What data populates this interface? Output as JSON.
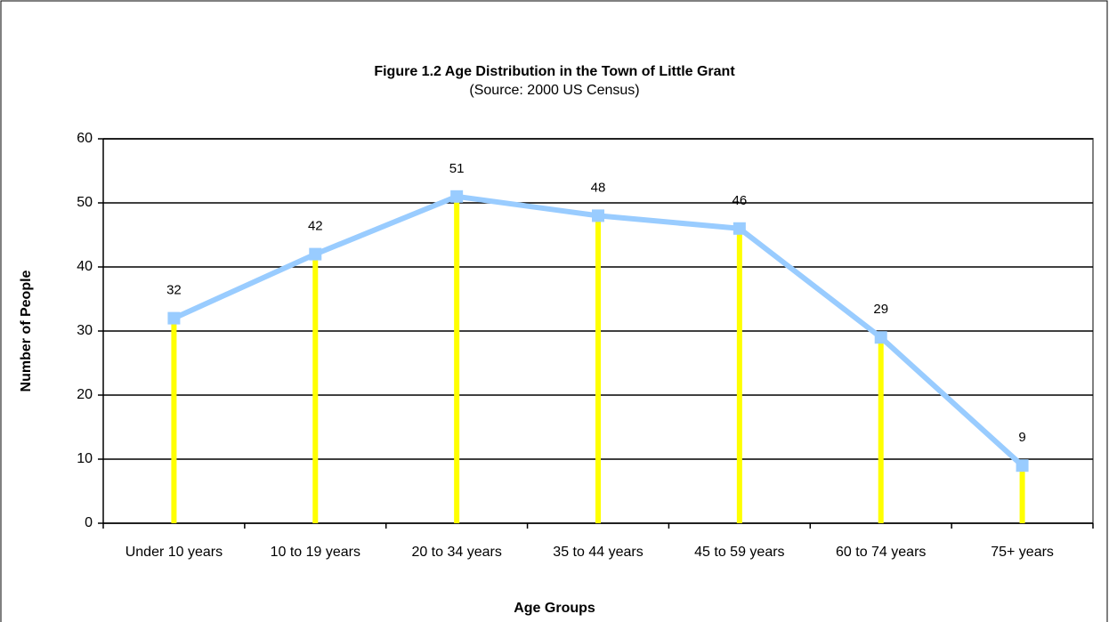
{
  "chart_data": {
    "type": "line",
    "title": "Figure 1.2  Age  Distribution in the Town of Little Grant",
    "subtitle": "(Source: 2000 US Census)",
    "x_label": "Age Groups",
    "y_label": "Number of People",
    "categories": [
      "Under 10 years",
      "10 to 19 years",
      "20 to 34 years",
      "35 to 44 years",
      "45 to 59 years",
      "60 to 74 years",
      "75+ years"
    ],
    "values": [
      32,
      42,
      51,
      48,
      46,
      29,
      9
    ],
    "color": "#99ccff",
    "drop_lines": true,
    "drop_line_color": "#ffff00",
    "data_labels": true,
    "ylim": [
      0,
      60
    ],
    "yticks": [
      0,
      10,
      20,
      30,
      40,
      50,
      60
    ],
    "grid": true
  }
}
